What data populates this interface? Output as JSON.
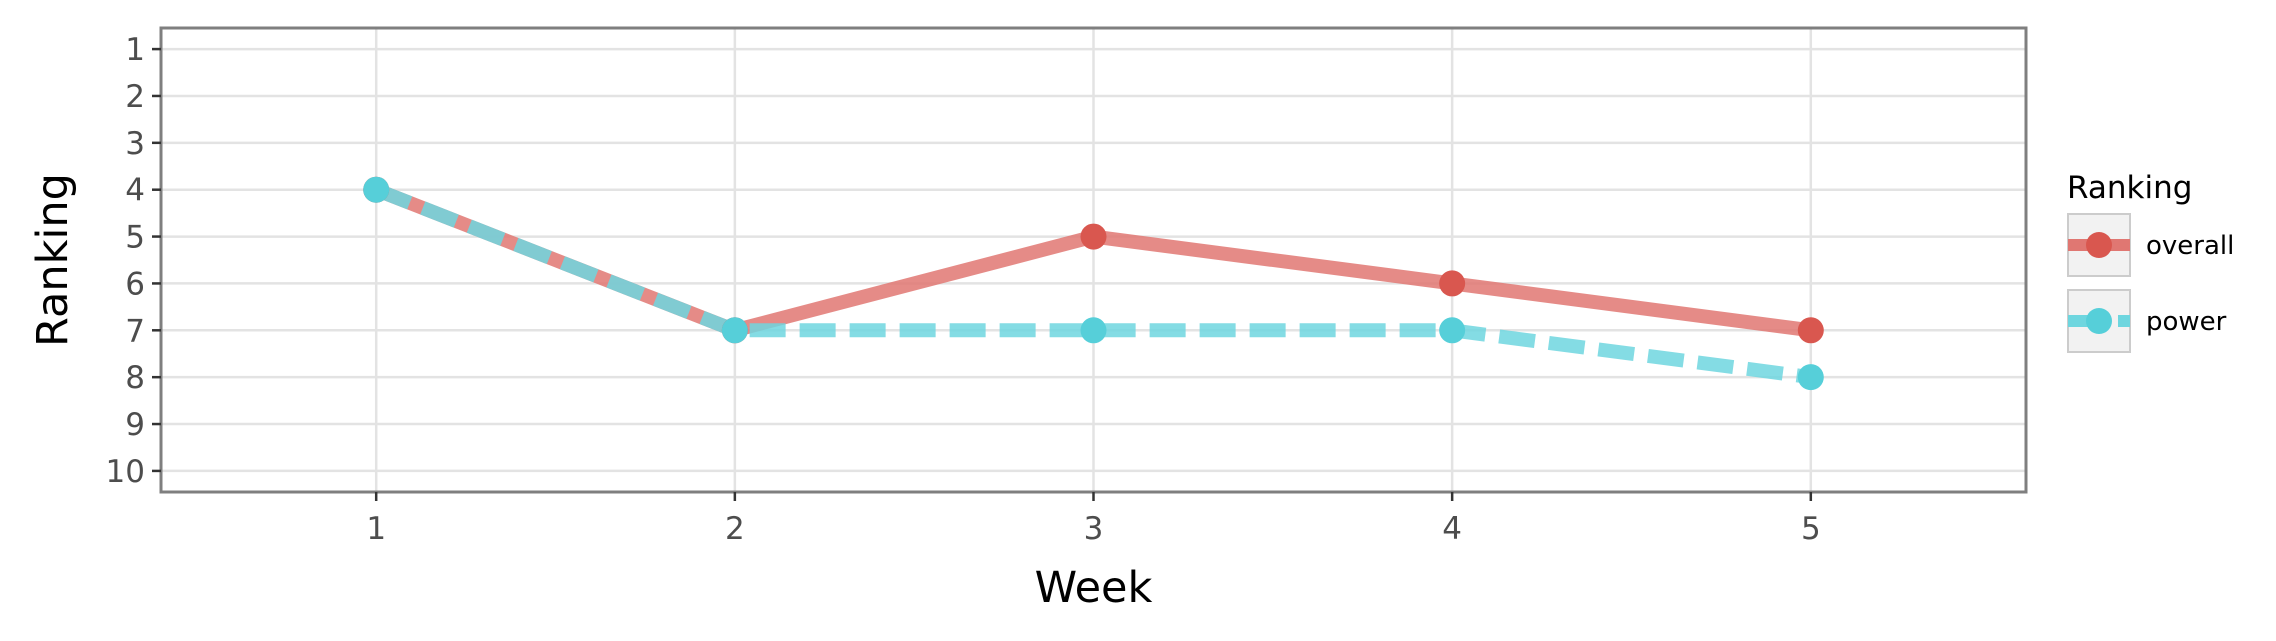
{
  "chart_data": {
    "type": "line",
    "xlabel": "Week",
    "ylabel": "Ranking",
    "x": [
      1,
      2,
      3,
      4,
      5
    ],
    "x_ticks": [
      "1",
      "2",
      "3",
      "4",
      "5"
    ],
    "xlim": [
      0.4,
      5.6
    ],
    "y_reversed": true,
    "y_ticks": [
      "1",
      "2",
      "3",
      "4",
      "5",
      "6",
      "7",
      "8",
      "9",
      "10"
    ],
    "ylim": [
      0.55,
      10.45
    ],
    "grid": true,
    "legend": {
      "title": "Ranking",
      "position": "right"
    },
    "series": [
      {
        "name": "overall",
        "values": [
          4,
          7,
          5,
          6,
          7
        ],
        "color": "#e07772",
        "point_color": "#d9574f",
        "style": "solid"
      },
      {
        "name": "power",
        "values": [
          4,
          7,
          7,
          7,
          8
        ],
        "color": "#6ed6df",
        "point_color": "#56cfd9",
        "style": "dashed"
      }
    ]
  }
}
